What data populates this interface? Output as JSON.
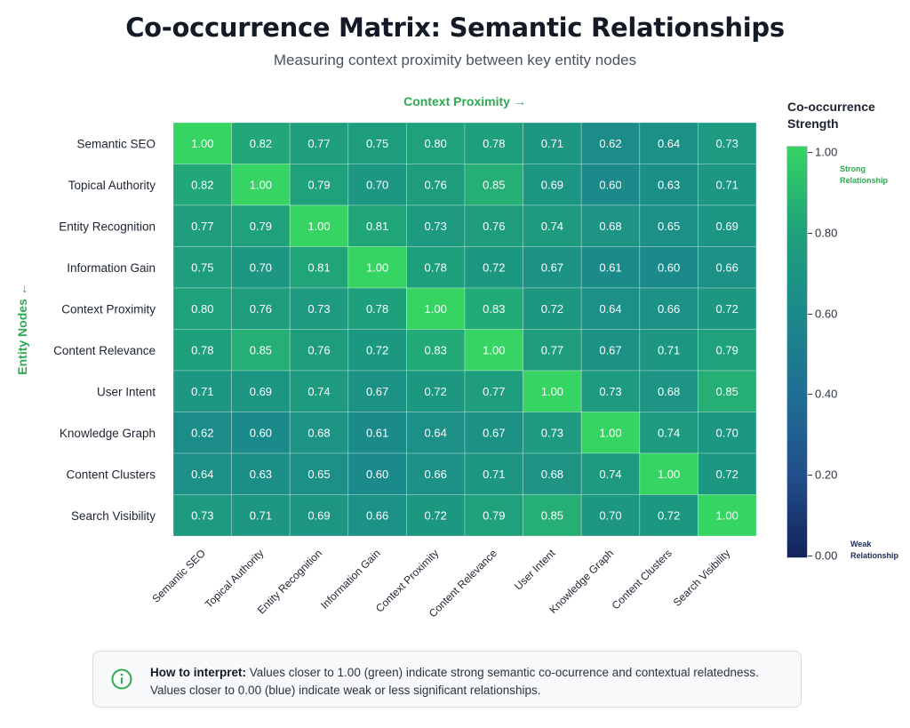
{
  "title": "Co-occurrence Matrix: Semantic Relationships",
  "subtitle": "Measuring context proximity between key entity nodes",
  "legend": {
    "title_line1": "Co-occurrence",
    "title_line2": "Strength",
    "strong_line1": "Strong",
    "strong_line2": "Relationship",
    "weak_line1": "Weak",
    "weak_line2": "Relationship",
    "ticks": [
      "1.00",
      "0.80",
      "0.60",
      "0.40",
      "0.20",
      "0.00"
    ],
    "gradient_colors": [
      "#36d463",
      "#1fa27a",
      "#1b8a8a",
      "#1f6f94",
      "#214f8c",
      "#13235a"
    ]
  },
  "note": {
    "label": "How to interpret:",
    "text": " Values closer to 1.00 (green) indicate strong semantic co-ocurrence and contextual relatedness. Values closer to 0.00 (blue) indicate weak or less significant relationships."
  },
  "chart_data": {
    "type": "heatmap",
    "title": "Co-occurrence Matrix: Semantic Relationships",
    "xlabel": "Context Proximity →",
    "ylabel": "Entity Nodes ←",
    "range": [
      0,
      1
    ],
    "x_categories": [
      "Semantic SEO",
      "Topical Authority",
      "Entity Recognition",
      "Information Gain",
      "Context Proximity",
      "Content Relevance",
      "User Intent",
      "Knowledge Graph",
      "Content Clusters",
      "Search Visibility"
    ],
    "y_categories": [
      "Semantic SEO",
      "Topical Authority",
      "Entity Recognition",
      "Information Gain",
      "Context Proximity",
      "Content Relevance",
      "User Intent",
      "Knowledge Graph",
      "Content Clusters",
      "Search Visibility"
    ],
    "values": [
      [
        1.0,
        0.82,
        0.77,
        0.75,
        0.8,
        0.78,
        0.71,
        0.62,
        0.64,
        0.73
      ],
      [
        0.82,
        1.0,
        0.79,
        0.7,
        0.76,
        0.85,
        0.69,
        0.6,
        0.63,
        0.71
      ],
      [
        0.77,
        0.79,
        1.0,
        0.81,
        0.73,
        0.76,
        0.74,
        0.68,
        0.65,
        0.69
      ],
      [
        0.75,
        0.7,
        0.81,
        1.0,
        0.78,
        0.72,
        0.67,
        0.61,
        0.6,
        0.66
      ],
      [
        0.8,
        0.76,
        0.73,
        0.78,
        1.0,
        0.83,
        0.72,
        0.64,
        0.66,
        0.72
      ],
      [
        0.78,
        0.85,
        0.76,
        0.72,
        0.83,
        1.0,
        0.77,
        0.67,
        0.71,
        0.79
      ],
      [
        0.71,
        0.69,
        0.74,
        0.67,
        0.72,
        0.77,
        1.0,
        0.73,
        0.68,
        0.85
      ],
      [
        0.62,
        0.6,
        0.68,
        0.61,
        0.64,
        0.67,
        0.73,
        1.0,
        0.74,
        0.7
      ],
      [
        0.64,
        0.63,
        0.65,
        0.6,
        0.66,
        0.71,
        0.68,
        0.74,
        1.0,
        0.72
      ],
      [
        0.73,
        0.71,
        0.69,
        0.66,
        0.72,
        0.79,
        0.85,
        0.7,
        0.72,
        1.0
      ]
    ]
  }
}
